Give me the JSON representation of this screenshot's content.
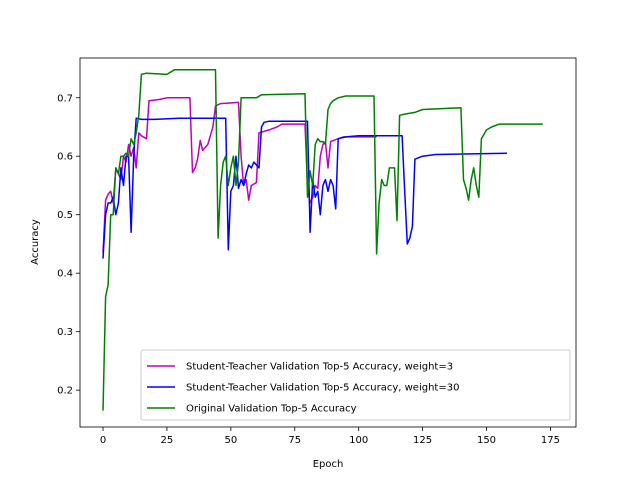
{
  "chart_data": {
    "type": "line",
    "title": "",
    "xlabel": "Epoch",
    "ylabel": "Accuracy",
    "xlim": [
      -9,
      185
    ],
    "ylim": [
      0.137,
      0.768
    ],
    "xticks": [
      0,
      25,
      50,
      75,
      100,
      125,
      150,
      175
    ],
    "yticks": [
      0.2,
      0.3,
      0.4,
      0.5,
      0.6,
      0.7
    ],
    "xtick_labels": [
      "0",
      "25",
      "50",
      "75",
      "100",
      "125",
      "150",
      "175"
    ],
    "ytick_labels": [
      "0.2",
      "0.3",
      "0.4",
      "0.5",
      "0.6",
      "0.7"
    ],
    "grid": false,
    "legend_position": "lower-right",
    "series": [
      {
        "name": "Student-Teacher Validation Top-5 Accuracy, weight=3",
        "color": "#bf00bf",
        "points": [
          [
            0,
            0.435
          ],
          [
            1,
            0.525
          ],
          [
            2,
            0.535
          ],
          [
            3,
            0.54
          ],
          [
            4,
            0.52
          ],
          [
            5,
            0.58
          ],
          [
            6,
            0.57
          ],
          [
            7,
            0.56
          ],
          [
            8,
            0.6
          ],
          [
            9,
            0.59
          ],
          [
            10,
            0.62
          ],
          [
            11,
            0.6
          ],
          [
            12,
            0.615
          ],
          [
            13,
            0.58
          ],
          [
            14,
            0.64
          ],
          [
            15,
            0.635
          ],
          [
            17,
            0.63
          ],
          [
            18,
            0.695
          ],
          [
            22,
            0.697
          ],
          [
            25,
            0.7
          ],
          [
            34,
            0.7
          ],
          [
            35,
            0.572
          ],
          [
            36,
            0.58
          ],
          [
            37,
            0.595
          ],
          [
            38,
            0.627
          ],
          [
            39,
            0.61
          ],
          [
            41,
            0.62
          ],
          [
            43,
            0.65
          ],
          [
            44,
            0.686
          ],
          [
            46,
            0.69
          ],
          [
            53,
            0.692
          ],
          [
            54,
            0.6
          ],
          [
            55,
            0.55
          ],
          [
            56,
            0.56
          ],
          [
            57,
            0.525
          ],
          [
            58,
            0.55
          ],
          [
            60,
            0.555
          ],
          [
            61,
            0.64
          ],
          [
            65,
            0.645
          ],
          [
            68,
            0.65
          ],
          [
            70,
            0.655
          ],
          [
            79,
            0.655
          ],
          [
            80,
            0.55
          ],
          [
            81,
            0.52
          ],
          [
            82,
            0.53
          ],
          [
            83,
            0.55
          ],
          [
            84,
            0.545
          ],
          [
            85,
            0.6
          ],
          [
            86,
            0.62
          ],
          [
            87,
            0.625
          ],
          [
            88,
            0.58
          ],
          [
            89,
            0.625
          ],
          [
            92,
            0.63
          ],
          [
            94,
            0.633
          ],
          [
            107,
            0.633
          ]
        ]
      },
      {
        "name": "Student-Teacher Validation Top-5 Accuracy, weight=30",
        "color": "#0000ff",
        "points": [
          [
            0,
            0.425
          ],
          [
            1,
            0.5
          ],
          [
            2,
            0.52
          ],
          [
            3,
            0.52
          ],
          [
            4,
            0.53
          ],
          [
            5,
            0.5
          ],
          [
            6,
            0.52
          ],
          [
            7,
            0.58
          ],
          [
            8,
            0.55
          ],
          [
            9,
            0.6
          ],
          [
            10,
            0.6
          ],
          [
            11,
            0.47
          ],
          [
            12,
            0.6
          ],
          [
            13,
            0.665
          ],
          [
            15,
            0.663
          ],
          [
            20,
            0.663
          ],
          [
            30,
            0.665
          ],
          [
            48,
            0.665
          ],
          [
            49,
            0.44
          ],
          [
            50,
            0.54
          ],
          [
            51,
            0.55
          ],
          [
            52,
            0.6
          ],
          [
            53,
            0.545
          ],
          [
            54,
            0.56
          ],
          [
            55,
            0.55
          ],
          [
            56,
            0.57
          ],
          [
            57,
            0.585
          ],
          [
            58,
            0.58
          ],
          [
            59,
            0.59
          ],
          [
            61,
            0.58
          ],
          [
            62,
            0.65
          ],
          [
            63,
            0.658
          ],
          [
            65,
            0.66
          ],
          [
            70,
            0.66
          ],
          [
            80,
            0.66
          ],
          [
            81,
            0.47
          ],
          [
            82,
            0.56
          ],
          [
            83,
            0.53
          ],
          [
            84,
            0.54
          ],
          [
            85,
            0.5
          ],
          [
            86,
            0.55
          ],
          [
            87,
            0.56
          ],
          [
            88,
            0.54
          ],
          [
            89,
            0.56
          ],
          [
            90,
            0.55
          ],
          [
            91,
            0.51
          ],
          [
            92,
            0.63
          ],
          [
            95,
            0.633
          ],
          [
            100,
            0.635
          ],
          [
            117,
            0.635
          ],
          [
            118,
            0.54
          ],
          [
            119,
            0.45
          ],
          [
            120,
            0.46
          ],
          [
            121,
            0.48
          ],
          [
            122,
            0.595
          ],
          [
            125,
            0.6
          ],
          [
            130,
            0.603
          ],
          [
            158,
            0.605
          ]
        ]
      },
      {
        "name": "Original Validation Top-5 Accuracy",
        "color": "#008000",
        "points": [
          [
            0,
            0.165
          ],
          [
            1,
            0.36
          ],
          [
            2,
            0.38
          ],
          [
            3,
            0.5
          ],
          [
            4,
            0.5
          ],
          [
            5,
            0.58
          ],
          [
            6,
            0.57
          ],
          [
            7,
            0.6
          ],
          [
            8,
            0.6
          ],
          [
            9,
            0.605
          ],
          [
            10,
            0.6
          ],
          [
            11,
            0.63
          ],
          [
            12,
            0.62
          ],
          [
            13,
            0.64
          ],
          [
            14,
            0.67
          ],
          [
            15,
            0.74
          ],
          [
            17,
            0.742
          ],
          [
            25,
            0.74
          ],
          [
            28,
            0.748
          ],
          [
            44,
            0.748
          ],
          [
            45,
            0.46
          ],
          [
            46,
            0.55
          ],
          [
            47,
            0.59
          ],
          [
            48,
            0.6
          ],
          [
            49,
            0.55
          ],
          [
            50,
            0.58
          ],
          [
            51,
            0.6
          ],
          [
            52,
            0.55
          ],
          [
            53,
            0.59
          ],
          [
            54,
            0.7
          ],
          [
            56,
            0.7
          ],
          [
            60,
            0.7
          ],
          [
            62,
            0.705
          ],
          [
            79,
            0.707
          ],
          [
            80,
            0.53
          ],
          [
            81,
            0.575
          ],
          [
            82,
            0.55
          ],
          [
            83,
            0.62
          ],
          [
            84,
            0.63
          ],
          [
            85,
            0.625
          ],
          [
            86,
            0.625
          ],
          [
            87,
            0.62
          ],
          [
            88,
            0.68
          ],
          [
            89,
            0.69
          ],
          [
            90,
            0.695
          ],
          [
            92,
            0.7
          ],
          [
            95,
            0.703
          ],
          [
            106,
            0.703
          ],
          [
            107,
            0.433
          ],
          [
            108,
            0.52
          ],
          [
            109,
            0.56
          ],
          [
            110,
            0.55
          ],
          [
            111,
            0.55
          ],
          [
            112,
            0.58
          ],
          [
            113,
            0.58
          ],
          [
            114,
            0.58
          ],
          [
            115,
            0.49
          ],
          [
            116,
            0.67
          ],
          [
            118,
            0.672
          ],
          [
            122,
            0.675
          ],
          [
            125,
            0.68
          ],
          [
            140,
            0.683
          ],
          [
            141,
            0.56
          ],
          [
            142,
            0.545
          ],
          [
            143,
            0.525
          ],
          [
            144,
            0.56
          ],
          [
            145,
            0.58
          ],
          [
            146,
            0.55
          ],
          [
            147,
            0.53
          ],
          [
            148,
            0.63
          ],
          [
            150,
            0.645
          ],
          [
            152,
            0.65
          ],
          [
            155,
            0.655
          ],
          [
            165,
            0.655
          ],
          [
            172,
            0.655
          ]
        ]
      }
    ]
  }
}
